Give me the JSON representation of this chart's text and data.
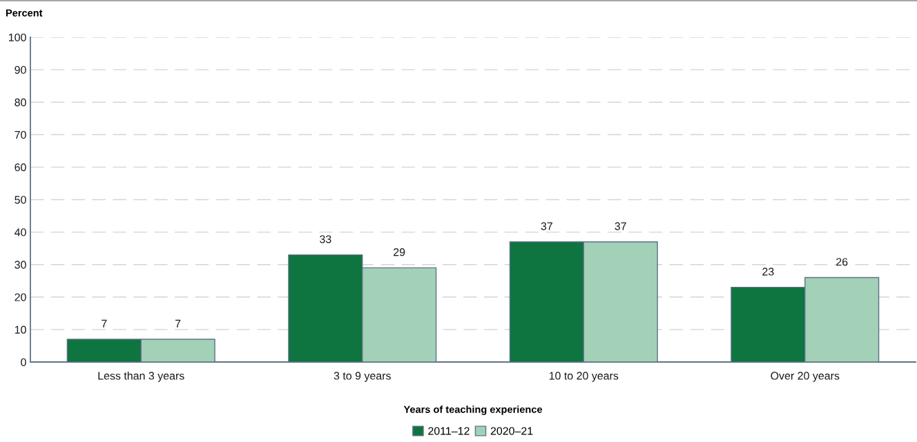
{
  "chart_data": {
    "type": "bar",
    "ylabel": "Percent",
    "xlabel": "Years of teaching experience",
    "categories": [
      "Less than 3 years",
      "3 to 9 years",
      "10 to 20 years",
      "Over 20 years"
    ],
    "series": [
      {
        "name": "2011–12",
        "color": "#0e7440",
        "values": [
          7,
          33,
          37,
          23
        ]
      },
      {
        "name": "2020–21",
        "color": "#a2d1b7",
        "values": [
          7,
          29,
          37,
          26
        ]
      }
    ],
    "ylim": [
      0,
      100
    ],
    "yticks": [
      0,
      10,
      20,
      30,
      40,
      50,
      60,
      70,
      80,
      90,
      100
    ],
    "grid": "y",
    "legend": "bottom",
    "data_labels": true
  }
}
